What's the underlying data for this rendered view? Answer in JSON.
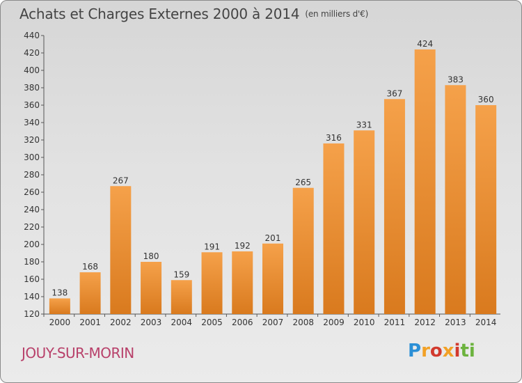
{
  "header": {
    "title": "Achats et Charges Externes 2000 à 2014",
    "unit": "(en milliers d'€)"
  },
  "footer": {
    "commune": "JOUY-SUR-MORIN",
    "brand": [
      "P",
      "r",
      "o",
      "x",
      "i",
      "t",
      "i"
    ]
  },
  "colors": {
    "bar_top": "#f5a14a",
    "bar_bottom": "#d97a1e",
    "commune": "#b8406a"
  },
  "chart_data": {
    "type": "bar",
    "title": "Achats et Charges Externes 2000 à 2014",
    "unit": "(en milliers d'€)",
    "categories": [
      "2000",
      "2001",
      "2002",
      "2003",
      "2004",
      "2005",
      "2006",
      "2007",
      "2008",
      "2009",
      "2010",
      "2011",
      "2012",
      "2013",
      "2014"
    ],
    "values": [
      138,
      168,
      267,
      180,
      159,
      191,
      192,
      201,
      265,
      316,
      331,
      367,
      424,
      383,
      360
    ],
    "ylim": [
      120,
      440
    ],
    "yticks": [
      120,
      140,
      160,
      180,
      200,
      220,
      240,
      260,
      280,
      300,
      320,
      340,
      360,
      380,
      400,
      420,
      440
    ],
    "grid": false,
    "data_labels": true
  }
}
